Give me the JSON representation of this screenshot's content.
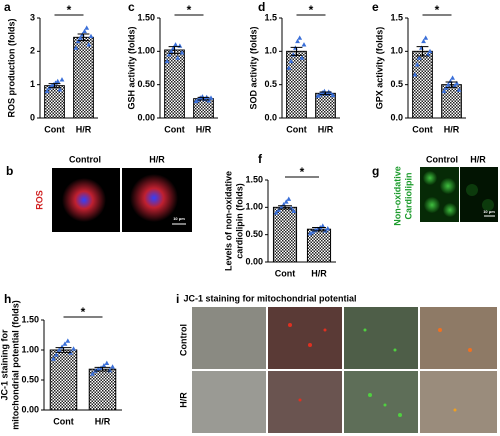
{
  "chart_data": [
    {
      "type": "bar",
      "panel": "a",
      "ylabel": [
        "ROS production (folds)"
      ],
      "categories": [
        "Cont",
        "H/R"
      ],
      "values": [
        0.97,
        2.42
      ],
      "errors": [
        0.06,
        0.1
      ],
      "points": [
        [
          0.8,
          0.9,
          0.95,
          1.0,
          1.05,
          1.1,
          0.85,
          1.15
        ],
        [
          2.1,
          2.3,
          2.4,
          2.5,
          2.6,
          2.7,
          2.2,
          2.45
        ]
      ],
      "ylim": [
        0,
        3
      ],
      "yticks": [
        0,
        1,
        2,
        3
      ],
      "significance": "*",
      "color": "#3a6fd8"
    },
    {
      "type": "bar",
      "panel": "c",
      "ylabel": [
        "GSH activity (folds)"
      ],
      "categories": [
        "Cont",
        "H/R"
      ],
      "values": [
        1.02,
        0.29
      ],
      "errors": [
        0.05,
        0.02
      ],
      "points": [
        [
          0.85,
          0.95,
          1.0,
          1.05,
          1.1,
          0.9,
          1.08,
          0.98
        ],
        [
          0.25,
          0.27,
          0.3,
          0.32,
          0.28,
          0.31,
          0.26,
          0.3
        ]
      ],
      "ylim": [
        0,
        1.5
      ],
      "yticks": [
        {
          "value": 0,
          "label": "0.00"
        },
        {
          "value": 0.5,
          "label": "0.50"
        },
        {
          "value": 1,
          "label": "1.00"
        },
        {
          "value": 1.5,
          "label": "1.50"
        }
      ],
      "significance": "*",
      "color": "#3a6fd8"
    },
    {
      "type": "bar",
      "panel": "d",
      "ylabel": [
        "SOD activity (folds)"
      ],
      "categories": [
        "Cont",
        "H/R"
      ],
      "values": [
        1.0,
        0.37
      ],
      "errors": [
        0.06,
        0.02
      ],
      "points": [
        [
          0.75,
          0.85,
          0.95,
          1.05,
          1.15,
          1.2,
          0.9,
          1.1
        ],
        [
          0.33,
          0.35,
          0.38,
          0.4,
          0.36,
          0.39,
          0.37,
          0.34
        ]
      ],
      "ylim": [
        0,
        1.5
      ],
      "yticks": [
        {
          "value": 0,
          "label": "0.0"
        },
        {
          "value": 0.5,
          "label": "0.5"
        },
        {
          "value": 1,
          "label": "1.0"
        },
        {
          "value": 1.5,
          "label": "1.5"
        }
      ],
      "significance": "*",
      "color": "#3a6fd8"
    },
    {
      "type": "bar",
      "panel": "e",
      "ylabel": [
        "GPX activity (folds)"
      ],
      "categories": [
        "Cont",
        "H/R"
      ],
      "values": [
        1.0,
        0.5
      ],
      "errors": [
        0.07,
        0.04
      ],
      "points": [
        [
          0.65,
          0.8,
          0.9,
          1.05,
          1.15,
          1.2,
          0.95,
          1.0
        ],
        [
          0.4,
          0.45,
          0.5,
          0.55,
          0.6,
          0.48,
          0.52,
          0.42
        ]
      ],
      "ylim": [
        0,
        1.5
      ],
      "yticks": [
        {
          "value": 0,
          "label": "0.0"
        },
        {
          "value": 0.5,
          "label": "0.5"
        },
        {
          "value": 1,
          "label": "1.0"
        },
        {
          "value": 1.5,
          "label": "1.5"
        }
      ],
      "significance": "*",
      "color": "#3a6fd8"
    },
    {
      "type": "bar",
      "panel": "f",
      "ylabel": [
        "Levels of non-oxidative",
        "cardiolipin (folds)"
      ],
      "categories": [
        "Cont",
        "H/R"
      ],
      "values": [
        1.0,
        0.6
      ],
      "errors": [
        0.03,
        0.03
      ],
      "points": [
        [
          0.9,
          0.95,
          1.0,
          1.05,
          1.1,
          1.15,
          0.98,
          0.93
        ],
        [
          0.52,
          0.55,
          0.58,
          0.6,
          0.63,
          0.66,
          0.57,
          0.61
        ]
      ],
      "ylim": [
        0,
        1.5
      ],
      "yticks": [
        {
          "value": 0,
          "label": "0.00"
        },
        {
          "value": 0.5,
          "label": "0.50"
        },
        {
          "value": 1,
          "label": "1.00"
        },
        {
          "value": 1.5,
          "label": "1.50"
        }
      ],
      "significance": "*",
      "color": "#3a6fd8"
    },
    {
      "type": "bar",
      "panel": "h",
      "ylabel": [
        "JC-1 staining for",
        "mitochondrial potential (folds)"
      ],
      "categories": [
        "Cont",
        "H/R"
      ],
      "values": [
        1.0,
        0.68
      ],
      "errors": [
        0.04,
        0.03
      ],
      "points": [
        [
          0.85,
          0.92,
          1.0,
          1.05,
          1.1,
          1.15,
          0.95,
          1.02
        ],
        [
          0.6,
          0.65,
          0.68,
          0.7,
          0.74,
          0.78,
          0.66,
          0.72
        ]
      ],
      "ylim": [
        0,
        1.5
      ],
      "yticks": [
        {
          "value": 0,
          "label": "0.00"
        },
        {
          "value": 0.5,
          "label": "0.50"
        },
        {
          "value": 1,
          "label": "1.00"
        },
        {
          "value": 1.5,
          "label": "1.50"
        }
      ],
      "significance": "*",
      "color": "#3a6fd8"
    }
  ],
  "image_panels": {
    "b": {
      "panel": "b",
      "columns": [
        "Control",
        "H/R"
      ],
      "row_label": "ROS",
      "scale": "10 μm"
    },
    "g": {
      "panel": "g",
      "columns": [
        "Control",
        "H/R"
      ],
      "row_label": [
        "Non-oxidative",
        "Cardiolipin"
      ],
      "scale": "10 μm"
    },
    "i": {
      "panel": "i",
      "title": "JC-1 staining for mitochondrial potential",
      "rows": [
        "Control",
        "H/R"
      ]
    }
  }
}
